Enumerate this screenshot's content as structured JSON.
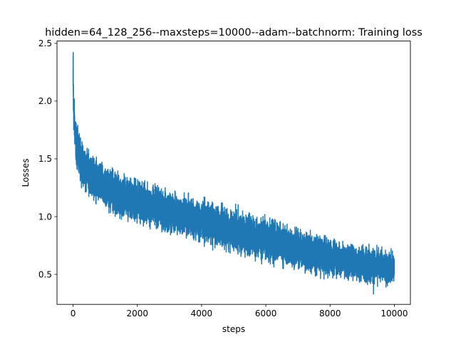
{
  "chart_data": {
    "type": "line",
    "title": "hidden=64_128_256--maxsteps=10000--adam--batchnorm: Training loss",
    "xlabel": "steps",
    "ylabel": "Losses",
    "xlim": [
      -500,
      10500
    ],
    "ylim": [
      0.24,
      2.52
    ],
    "xticks": [
      0,
      2000,
      4000,
      6000,
      8000,
      10000
    ],
    "xtick_labels": [
      "0",
      "2000",
      "4000",
      "6000",
      "8000",
      "10000"
    ],
    "yticks": [
      0.5,
      1.0,
      1.5,
      2.0,
      2.5
    ],
    "ytick_labels": [
      "0.5",
      "1.0",
      "1.5",
      "2.0",
      "2.5"
    ],
    "grid": false,
    "series": [
      {
        "color": "#1f77b4",
        "x": [
          0,
          10,
          25,
          50,
          100,
          200,
          300,
          500,
          750,
          1000,
          1500,
          2000,
          2500,
          3000,
          3500,
          4000,
          4500,
          5000,
          5500,
          6000,
          6500,
          7000,
          7500,
          8000,
          8500,
          9000,
          9500,
          10000
        ],
        "mean": [
          2.1,
          2.0,
          1.9,
          1.78,
          1.62,
          1.52,
          1.45,
          1.38,
          1.3,
          1.25,
          1.18,
          1.13,
          1.08,
          1.04,
          1.0,
          0.96,
          0.92,
          0.88,
          0.84,
          0.8,
          0.76,
          0.72,
          0.68,
          0.65,
          0.62,
          0.59,
          0.57,
          0.55
        ],
        "spread": [
          0.32,
          0.2,
          0.15,
          0.14,
          0.14,
          0.14,
          0.14,
          0.14,
          0.14,
          0.14,
          0.14,
          0.14,
          0.14,
          0.14,
          0.14,
          0.14,
          0.14,
          0.14,
          0.14,
          0.14,
          0.14,
          0.13,
          0.13,
          0.12,
          0.12,
          0.12,
          0.11,
          0.11
        ],
        "max": 2.42,
        "min": 0.33,
        "n_points": 10000
      }
    ]
  }
}
